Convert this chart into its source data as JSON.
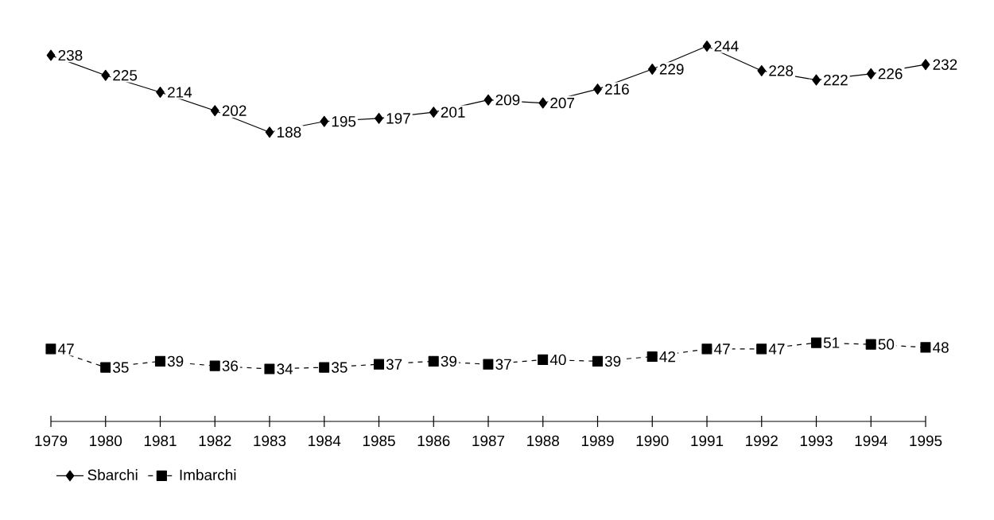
{
  "chart_data": {
    "type": "line",
    "categories": [
      "1979",
      "1980",
      "1981",
      "1982",
      "1983",
      "1984",
      "1985",
      "1986",
      "1987",
      "1988",
      "1989",
      "1990",
      "1991",
      "1992",
      "1993",
      "1994",
      "1995"
    ],
    "series": [
      {
        "name": "Sbarchi",
        "color": "#000000",
        "marker": "diamond",
        "line_style": "solid",
        "values": [
          238,
          225,
          214,
          202,
          188,
          195,
          197,
          201,
          209,
          207,
          216,
          229,
          244,
          228,
          222,
          226,
          232
        ]
      },
      {
        "name": "Imbarchi",
        "color": "#000000",
        "marker": "square",
        "line_style": "dashed",
        "values": [
          47,
          35,
          39,
          36,
          34,
          35,
          37,
          39,
          37,
          40,
          39,
          42,
          47,
          47,
          51,
          50,
          48
        ]
      }
    ],
    "tick_labels": "x",
    "data_labels": true,
    "grid": false,
    "legend": "bottom left"
  }
}
